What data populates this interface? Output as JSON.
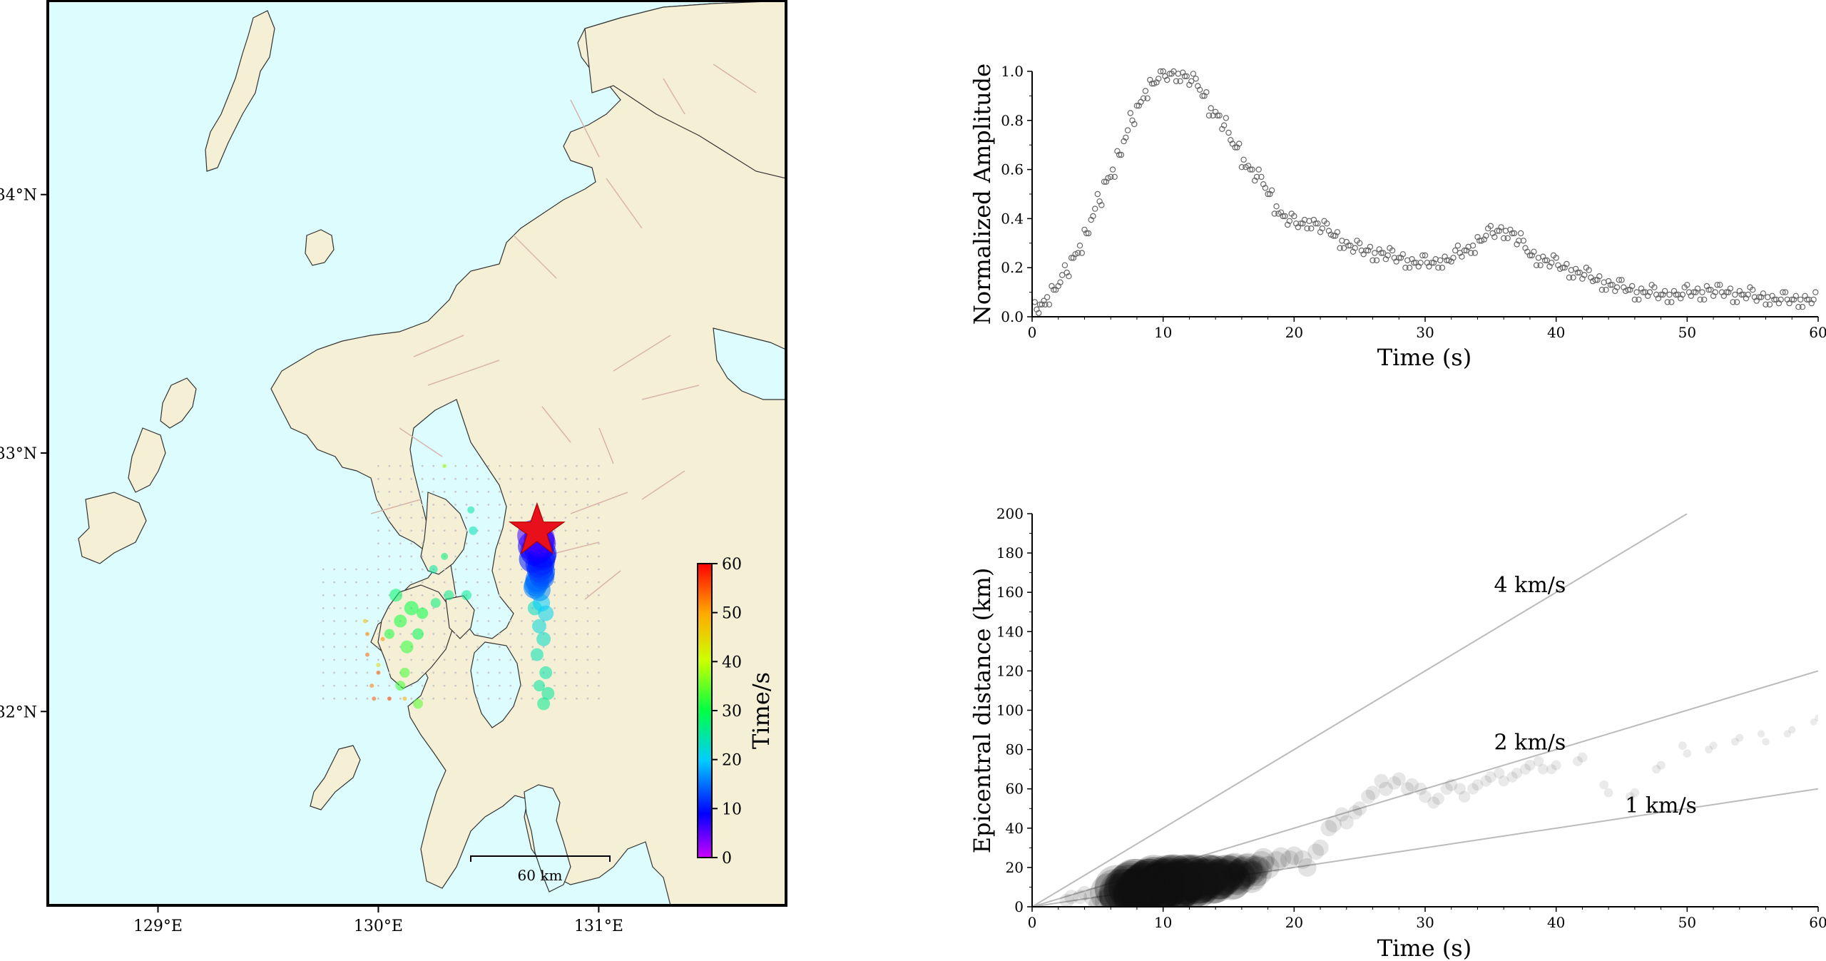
{
  "map": {
    "lon_ticks": [
      {
        "value": 129,
        "label": "129°E"
      },
      {
        "value": 130,
        "label": "130°E"
      },
      {
        "value": 131,
        "label": "131°E"
      }
    ],
    "lat_ticks": [
      {
        "value": 32,
        "label": "32°N"
      },
      {
        "value": 33,
        "label": "33°N"
      },
      {
        "value": 34,
        "label": "34°N"
      }
    ],
    "lon_range": [
      128.5,
      131.85
    ],
    "lat_range": [
      31.25,
      34.75
    ],
    "scale_bar_label": "60 km",
    "epicenter": {
      "lon": 130.72,
      "lat": 32.7
    },
    "colorbar": {
      "label": "Time/s",
      "min": 0,
      "max": 60,
      "ticks": [
        0,
        10,
        20,
        30,
        40,
        50,
        60
      ]
    },
    "colors": {
      "sea": "#dcfcfd",
      "land": "#f4efd5",
      "coast": "#333333",
      "fault": "#d8b5aa",
      "epicenter": "#e8101a"
    }
  },
  "chart_data": [
    {
      "type": "scatter",
      "title": "",
      "xlabel": "Time (s)",
      "ylabel": "Normalized Amplitude",
      "xlim": [
        0,
        60
      ],
      "ylim": [
        0,
        1.0
      ],
      "xticks": [
        0,
        10,
        20,
        30,
        40,
        50,
        60
      ],
      "yticks": [
        0.0,
        0.2,
        0.4,
        0.6,
        0.8,
        1.0
      ],
      "ytick_labels": [
        "0.0",
        "0.2",
        "0.4",
        "0.6",
        "0.8",
        "1.0"
      ],
      "marker": "open-circle",
      "series": [
        {
          "x": [
            0.2,
            0.6,
            1.0,
            1.5,
            2.0,
            2.5,
            3.0,
            3.5,
            4.0,
            4.5,
            5.0,
            5.5,
            6.0,
            6.5,
            7.0,
            7.5,
            8.0,
            8.5,
            9.0,
            9.5,
            10.0,
            10.5,
            11.0,
            11.5,
            12.0,
            12.5,
            13.0,
            13.5,
            14.0,
            14.5,
            15.0,
            15.5,
            16.0,
            16.5,
            17.0,
            17.5,
            18.0,
            18.5,
            19.0,
            19.5,
            20.0,
            20.5,
            21.0,
            21.5,
            22.0,
            22.5,
            23.0,
            23.5,
            24.0,
            24.5,
            25.0,
            25.5,
            26.0,
            26.5,
            27.0,
            27.5,
            28.0,
            28.5,
            29.0,
            29.5,
            30.0,
            30.5,
            31.0,
            31.5,
            32.0,
            32.5,
            33.0,
            33.5,
            34.0,
            34.5,
            35.0,
            35.5,
            36.0,
            36.5,
            37.0,
            37.5,
            38.0,
            38.5,
            39.0,
            39.5,
            40.0,
            40.5,
            41.0,
            41.5,
            42.0,
            42.5,
            43.0,
            43.5,
            44.0,
            44.5,
            45.0,
            45.5,
            46.0,
            46.5,
            47.0,
            47.5,
            48.0,
            48.5,
            49.0,
            49.5,
            50.0,
            50.5,
            51.0,
            51.5,
            52.0,
            52.5,
            53.0,
            53.5,
            54.0,
            54.5,
            55.0,
            55.5,
            56.0,
            56.5,
            57.0,
            57.5,
            58.0,
            58.5,
            59.0,
            59.5
          ],
          "y": [
            0.03,
            0.05,
            0.08,
            0.11,
            0.14,
            0.18,
            0.24,
            0.29,
            0.34,
            0.41,
            0.47,
            0.55,
            0.6,
            0.66,
            0.73,
            0.8,
            0.86,
            0.92,
            0.95,
            0.97,
            0.98,
            0.99,
            0.99,
            0.98,
            0.96,
            0.94,
            0.9,
            0.85,
            0.82,
            0.78,
            0.72,
            0.69,
            0.64,
            0.6,
            0.57,
            0.54,
            0.5,
            0.45,
            0.41,
            0.39,
            0.38,
            0.38,
            0.39,
            0.38,
            0.36,
            0.35,
            0.33,
            0.31,
            0.29,
            0.28,
            0.27,
            0.27,
            0.26,
            0.26,
            0.25,
            0.24,
            0.24,
            0.23,
            0.22,
            0.22,
            0.22,
            0.22,
            0.23,
            0.23,
            0.24,
            0.26,
            0.27,
            0.29,
            0.31,
            0.33,
            0.34,
            0.35,
            0.35,
            0.34,
            0.31,
            0.28,
            0.25,
            0.24,
            0.23,
            0.22,
            0.21,
            0.2,
            0.19,
            0.18,
            0.17,
            0.16,
            0.15,
            0.14,
            0.13,
            0.12,
            0.12,
            0.11,
            0.1,
            0.1,
            0.1,
            0.09,
            0.09,
            0.09,
            0.09,
            0.09,
            0.1,
            0.1,
            0.1,
            0.11,
            0.1,
            0.1,
            0.1,
            0.09,
            0.09,
            0.09,
            0.08,
            0.08,
            0.08,
            0.07,
            0.07,
            0.07,
            0.07,
            0.07,
            0.07,
            0.07
          ]
        }
      ]
    },
    {
      "type": "scatter",
      "title": "",
      "xlabel": "Time (s)",
      "ylabel": "Epicentral distance (km)",
      "xlim": [
        0,
        60
      ],
      "ylim": [
        0,
        200
      ],
      "xticks": [
        0,
        10,
        20,
        30,
        40,
        50,
        60
      ],
      "yticks": [
        0,
        20,
        40,
        60,
        80,
        100,
        120,
        140,
        160,
        180,
        200
      ],
      "reference_lines": [
        {
          "label": "4 km/s",
          "slope": 4
        },
        {
          "label": "2 km/s",
          "slope": 2
        },
        {
          "label": "1 km/s",
          "slope": 1
        }
      ],
      "series": [
        {
          "x": [
            3,
            4,
            5,
            6,
            7,
            7.5,
            8,
            8.5,
            9,
            9.5,
            10,
            10.5,
            11,
            11.5,
            12,
            12.5,
            13,
            13.5,
            14,
            14.5,
            15,
            15.5,
            16,
            16.5,
            17,
            17.5,
            18,
            19,
            20,
            21,
            22,
            23,
            24,
            25,
            26,
            27,
            28,
            29,
            30,
            31,
            32,
            33,
            34,
            35,
            36,
            37,
            38,
            39,
            40,
            42,
            44,
            46,
            48,
            50,
            52,
            54,
            56,
            58,
            60
          ],
          "y": [
            5,
            5,
            3,
            5,
            7,
            8,
            9,
            10,
            10,
            11,
            12,
            11,
            12,
            13,
            13,
            12,
            14,
            14,
            14,
            15,
            15,
            16,
            17,
            18,
            19,
            20,
            22,
            25,
            24,
            22,
            30,
            40,
            45,
            50,
            56,
            62,
            65,
            60,
            58,
            55,
            60,
            58,
            62,
            64,
            66,
            68,
            70,
            72,
            72,
            74,
            60,
            58,
            70,
            80,
            82,
            84,
            86,
            90,
            94
          ],
          "sizes": [
            0.2,
            0.2,
            0.3,
            0.4,
            0.8,
            0.9,
            1.0,
            1.0,
            1.0,
            1.0,
            1.0,
            1.0,
            1.0,
            0.95,
            0.9,
            0.9,
            0.85,
            0.8,
            0.8,
            0.75,
            0.7,
            0.6,
            0.6,
            0.55,
            0.5,
            0.45,
            0.4,
            0.35,
            0.3,
            0.3,
            0.25,
            0.25,
            0.2,
            0.2,
            0.2,
            0.2,
            0.18,
            0.18,
            0.16,
            0.15,
            0.15,
            0.14,
            0.13,
            0.13,
            0.12,
            0.12,
            0.12,
            0.11,
            0.1,
            0.1,
            0.08,
            0.08,
            0.07,
            0.06,
            0.05,
            0.05,
            0.04,
            0.04,
            0.03
          ]
        }
      ]
    }
  ]
}
